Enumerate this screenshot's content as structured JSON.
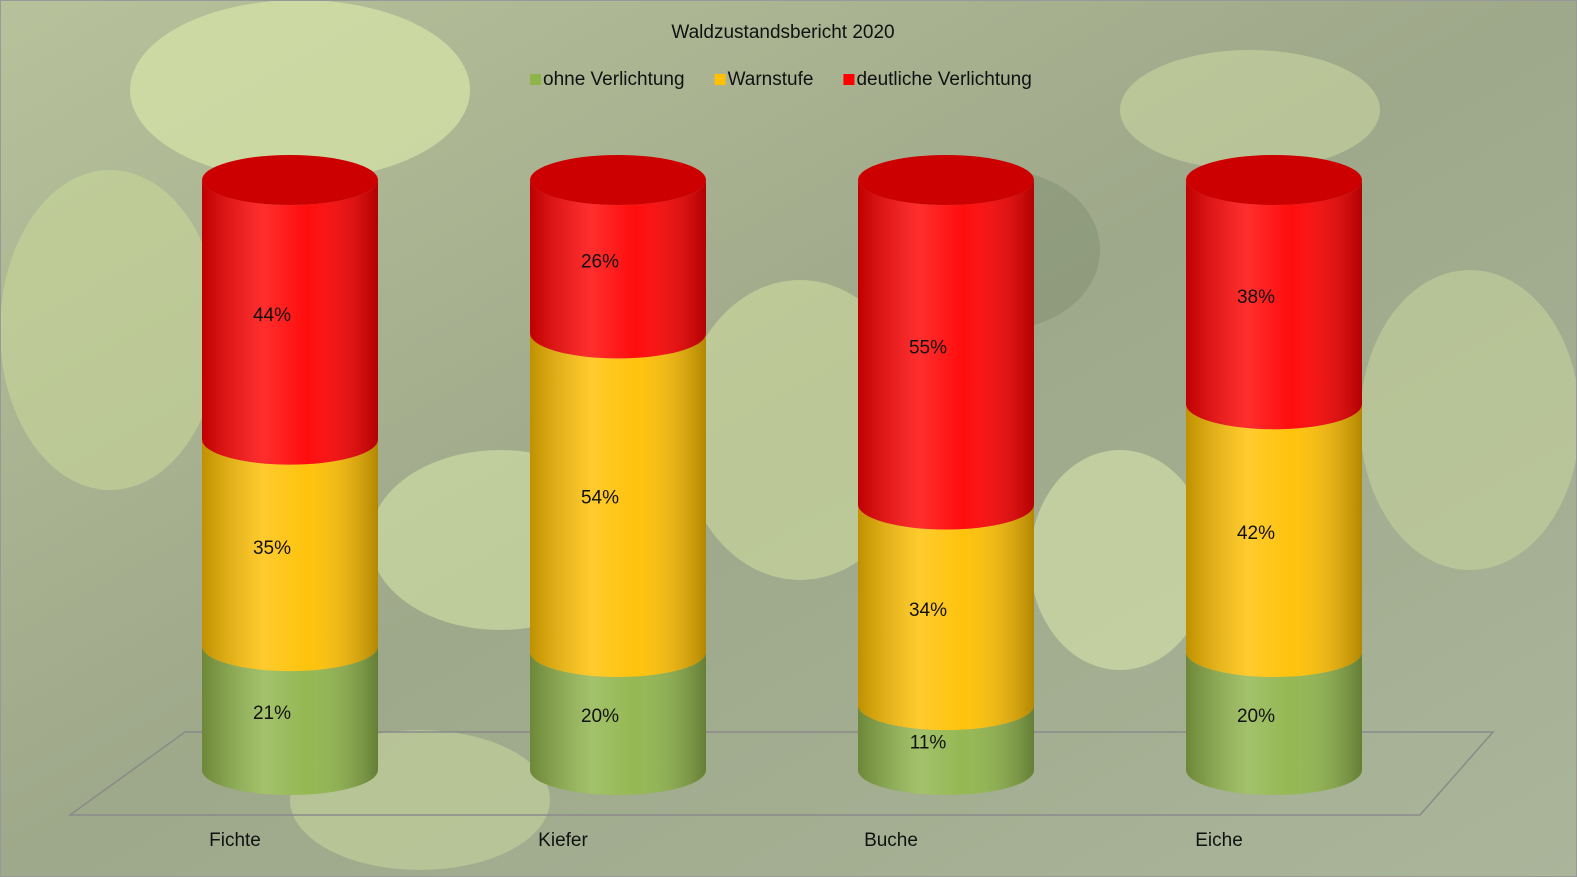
{
  "chart_data": {
    "type": "cylinder-stacked",
    "title": "Waldzustandsbericht 2020",
    "categories": [
      "Fichte",
      "Kiefer",
      "Buche",
      "Eiche"
    ],
    "ylim": [
      0,
      100
    ],
    "series": [
      {
        "name": "ohne Verlichtung",
        "color": "#8fb44a",
        "values": [
          21,
          20,
          11,
          20
        ],
        "value_labels": [
          "21%",
          "20%",
          "11%",
          "20%"
        ]
      },
      {
        "name": "Warnstufe",
        "color": "#ffc000",
        "values": [
          35,
          54,
          34,
          42
        ],
        "value_labels": [
          "35%",
          "54%",
          "34%",
          "42%"
        ]
      },
      {
        "name": "deutliche Verlichtung",
        "color": "#ff0000",
        "values": [
          44,
          26,
          55,
          38
        ],
        "value_labels": [
          "44%",
          "26%",
          "55%",
          "38%"
        ]
      }
    ]
  }
}
